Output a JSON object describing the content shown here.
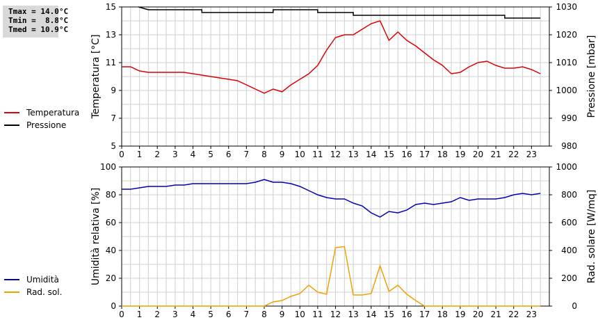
{
  "stats": {
    "tmax": "Tmax = 14.0°C",
    "tmin": "Tmin =  8.8°C",
    "tmed": "Tmed = 10.9°C"
  },
  "colors": {
    "temperature": "#dd0000",
    "pressure": "#000000",
    "humidity": "#0000bb",
    "radiation": "#f0a000",
    "grid": "#d0d0d0"
  },
  "legend_top": [
    {
      "label": "Temperatura",
      "color": "#dd0000"
    },
    {
      "label": "Pressione",
      "color": "#000000"
    }
  ],
  "legend_bottom": [
    {
      "label": "Umidità",
      "color": "#0000bb"
    },
    {
      "label": "Rad. sol.",
      "color": "#f0a000"
    }
  ],
  "chart_data": [
    {
      "type": "line",
      "ylabel": "Temperatura [°C]",
      "y2label": "Pressione [mbar]",
      "xlim": [
        0,
        24
      ],
      "ylim": [
        5,
        15
      ],
      "y2lim": [
        980,
        1030
      ],
      "yticks": [
        5,
        7,
        9,
        11,
        13,
        15
      ],
      "y2ticks": [
        980,
        990,
        1000,
        1010,
        1020,
        1030
      ],
      "xticks": [
        0,
        1,
        2,
        3,
        4,
        5,
        6,
        7,
        8,
        9,
        10,
        11,
        12,
        13,
        14,
        15,
        16,
        17,
        18,
        19,
        20,
        21,
        22,
        23
      ],
      "grid": true,
      "series": [
        {
          "name": "Temperatura",
          "axis": "left",
          "color": "#dd0000",
          "x": [
            0,
            0.5,
            1,
            1.5,
            2,
            2.5,
            3,
            3.5,
            4,
            4.5,
            5,
            5.5,
            6,
            6.5,
            7,
            7.5,
            8,
            8.5,
            9,
            9.5,
            10,
            10.5,
            11,
            11.5,
            12,
            12.5,
            13,
            13.5,
            14,
            14.5,
            15,
            15.5,
            16,
            16.5,
            17,
            17.5,
            18,
            18.5,
            19,
            19.5,
            20,
            20.5,
            21,
            21.5,
            22,
            22.5,
            23,
            23.5
          ],
          "values": [
            10.7,
            10.7,
            10.4,
            10.3,
            10.3,
            10.3,
            10.3,
            10.3,
            10.2,
            10.1,
            10.0,
            9.9,
            9.8,
            9.7,
            9.4,
            9.1,
            8.8,
            9.1,
            8.9,
            9.4,
            9.8,
            10.2,
            10.8,
            11.9,
            12.8,
            13.0,
            13.0,
            13.4,
            13.8,
            14.0,
            12.6,
            13.2,
            12.6,
            12.2,
            11.7,
            11.2,
            10.8,
            10.2,
            10.3,
            10.7,
            11.0,
            11.1,
            10.8,
            10.6,
            10.6,
            10.7,
            10.5,
            10.2
          ]
        },
        {
          "name": "Pressione",
          "axis": "right",
          "color": "#000000",
          "x": [
            1.5,
            4.5,
            4.5,
            8.5,
            8.5,
            11,
            11,
            13,
            13,
            21.5,
            21.5,
            23.5
          ],
          "values": [
            1029,
            1029,
            1028,
            1028,
            1029,
            1029,
            1028,
            1028,
            1027,
            1027,
            1026,
            1026
          ]
        },
        {
          "name": "Pressione-start",
          "axis": "right",
          "color": "#000000",
          "x": [
            0.95,
            1.5
          ],
          "values": [
            1030,
            1029
          ]
        }
      ]
    },
    {
      "type": "line",
      "ylabel": "Umidità relativa [%]",
      "y2label": "Rad. solare [W/mq]",
      "xlim": [
        0,
        24
      ],
      "ylim": [
        0,
        100
      ],
      "y2lim": [
        0,
        1000
      ],
      "yticks": [
        0,
        20,
        40,
        60,
        80,
        100
      ],
      "y2ticks": [
        0,
        200,
        400,
        600,
        800,
        1000
      ],
      "xticks": [
        0,
        1,
        2,
        3,
        4,
        5,
        6,
        7,
        8,
        9,
        10,
        11,
        12,
        13,
        14,
        15,
        16,
        17,
        18,
        19,
        20,
        21,
        22,
        23
      ],
      "grid": true,
      "series": [
        {
          "name": "Umidità",
          "axis": "left",
          "color": "#0000bb",
          "x": [
            0,
            0.5,
            1,
            1.5,
            2,
            2.5,
            3,
            3.5,
            4,
            4.5,
            5,
            5.5,
            6,
            6.5,
            7,
            7.5,
            8,
            8.5,
            9,
            9.5,
            10,
            10.5,
            11,
            11.5,
            12,
            12.5,
            13,
            13.5,
            14,
            14.5,
            15,
            15.5,
            16,
            16.5,
            17,
            17.5,
            18,
            18.5,
            19,
            19.5,
            20,
            20.5,
            21,
            21.5,
            22,
            22.5,
            23,
            23.5
          ],
          "values": [
            84,
            84,
            85,
            86,
            86,
            86,
            87,
            87,
            88,
            88,
            88,
            88,
            88,
            88,
            88,
            89,
            91,
            89,
            89,
            88,
            86,
            83,
            80,
            78,
            77,
            77,
            74,
            72,
            67,
            64,
            68,
            67,
            69,
            73,
            74,
            73,
            74,
            75,
            78,
            76,
            77,
            77,
            77,
            78,
            80,
            81,
            80,
            81
          ]
        },
        {
          "name": "Rad. sol.",
          "axis": "right",
          "color": "#f0a000",
          "x": [
            0,
            0.5,
            1,
            1.5,
            2,
            2.5,
            3,
            3.5,
            4,
            4.5,
            5,
            5.5,
            6,
            6.5,
            7,
            7.5,
            8,
            8.5,
            9,
            9.5,
            10,
            10.5,
            11,
            11.5,
            12,
            12.5,
            13,
            13.5,
            14,
            14.5,
            15,
            15.5,
            16,
            16.5,
            17,
            17.5,
            18,
            18.5,
            19,
            19.5,
            20,
            20.5,
            21,
            21.5,
            22,
            22.5,
            23,
            23.5
          ],
          "values": [
            0,
            0,
            0,
            0,
            0,
            0,
            0,
            0,
            0,
            0,
            0,
            0,
            0,
            0,
            0,
            0,
            0,
            30,
            40,
            70,
            90,
            150,
            100,
            85,
            420,
            428,
            80,
            80,
            90,
            290,
            105,
            150,
            85,
            40,
            0,
            0,
            0,
            0,
            0,
            0,
            0,
            0,
            0,
            0,
            0,
            0,
            0,
            0
          ]
        }
      ]
    }
  ]
}
